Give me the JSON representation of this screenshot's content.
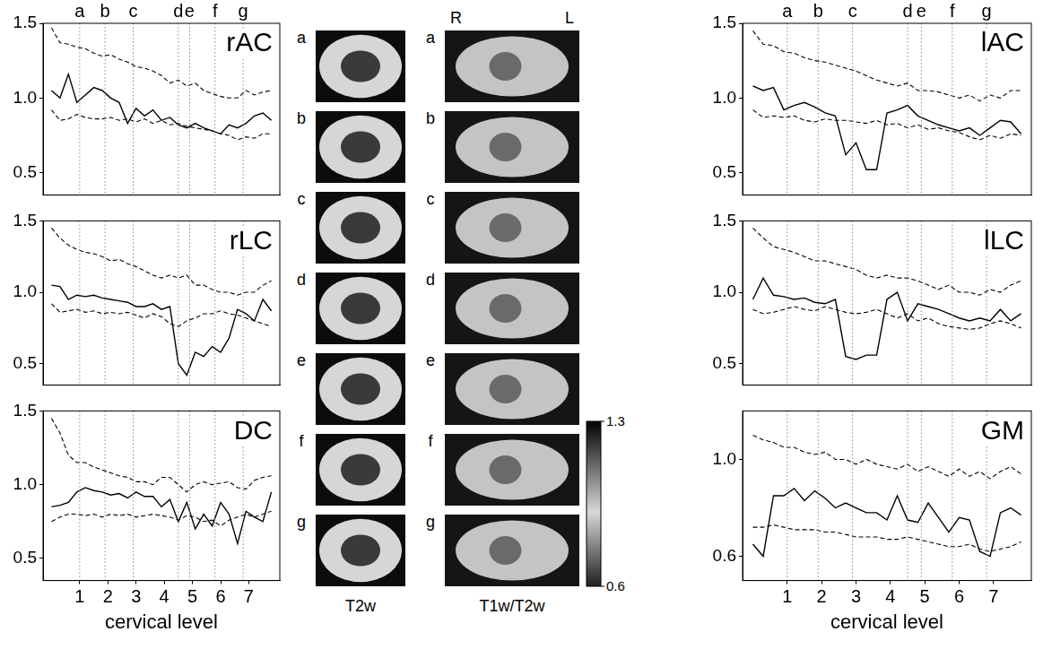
{
  "sections": {
    "labels": [
      "a",
      "b",
      "c",
      "d",
      "e",
      "f",
      "g"
    ],
    "x": [
      1.0,
      1.9,
      2.9,
      4.5,
      4.9,
      5.8,
      6.8
    ]
  },
  "chart_data": [
    {
      "type": "line",
      "title": "rAC",
      "tick_labels": "y",
      "x": [
        0,
        0.3,
        0.6,
        0.9,
        1.2,
        1.5,
        1.8,
        2.1,
        2.4,
        2.7,
        3,
        3.3,
        3.6,
        3.9,
        4.2,
        4.5,
        4.8,
        5.1,
        5.4,
        5.7,
        6,
        6.3,
        6.6,
        6.9,
        7.2,
        7.5,
        7.8
      ],
      "xlim": [
        -0.3,
        8.1
      ],
      "ylim": [
        0.35,
        1.5
      ],
      "yticks": [
        0.5,
        {
          "value": 1,
          "label": "1.0"
        },
        1.5
      ],
      "series": [
        {
          "color": "#000000",
          "line_style": "solid",
          "values": [
            1.05,
            1.0,
            1.16,
            0.97,
            1.02,
            1.07,
            1.05,
            1.0,
            0.97,
            0.83,
            0.93,
            0.88,
            0.92,
            0.85,
            0.87,
            0.82,
            0.8,
            0.83,
            0.8,
            0.78,
            0.76,
            0.82,
            0.8,
            0.83,
            0.88,
            0.9,
            0.85
          ]
        },
        {
          "color": "#000000",
          "line_style": "dashed",
          "values": [
            1.47,
            1.37,
            1.36,
            1.34,
            1.33,
            1.3,
            1.28,
            1.29,
            1.26,
            1.24,
            1.21,
            1.2,
            1.18,
            1.15,
            1.1,
            1.12,
            1.08,
            1.1,
            1.05,
            1.03,
            1.01,
            1.0,
            1.0,
            1.05,
            1.02,
            1.04,
            1.05
          ]
        },
        {
          "color": "#000000",
          "line_style": "dashed",
          "values": [
            0.92,
            0.85,
            0.86,
            0.89,
            0.87,
            0.86,
            0.86,
            0.87,
            0.85,
            0.86,
            0.84,
            0.86,
            0.83,
            0.85,
            0.82,
            0.83,
            0.81,
            0.8,
            0.79,
            0.78,
            0.76,
            0.75,
            0.72,
            0.74,
            0.73,
            0.76,
            0.76
          ]
        }
      ]
    },
    {
      "type": "line",
      "title": "rLC",
      "tick_labels": "y",
      "x": [
        0,
        0.3,
        0.6,
        0.9,
        1.2,
        1.5,
        1.8,
        2.1,
        2.4,
        2.7,
        3,
        3.3,
        3.6,
        3.9,
        4.2,
        4.5,
        4.8,
        5.1,
        5.4,
        5.7,
        6,
        6.3,
        6.6,
        6.9,
        7.2,
        7.5,
        7.8
      ],
      "xlim": [
        -0.3,
        8.1
      ],
      "ylim": [
        0.35,
        1.5
      ],
      "yticks": [
        0.5,
        {
          "value": 1,
          "label": "1.0"
        },
        1.5
      ],
      "series": [
        {
          "color": "#000000",
          "line_style": "solid",
          "values": [
            1.05,
            1.04,
            0.95,
            0.98,
            0.97,
            0.98,
            0.96,
            0.95,
            0.94,
            0.93,
            0.9,
            0.9,
            0.92,
            0.88,
            0.9,
            0.5,
            0.42,
            0.58,
            0.55,
            0.62,
            0.58,
            0.68,
            0.88,
            0.85,
            0.8,
            0.95,
            0.87
          ]
        },
        {
          "color": "#000000",
          "line_style": "dashed",
          "values": [
            1.45,
            1.38,
            1.33,
            1.3,
            1.28,
            1.27,
            1.25,
            1.22,
            1.23,
            1.2,
            1.18,
            1.15,
            1.12,
            1.1,
            1.12,
            1.1,
            1.12,
            1.05,
            1.05,
            1.02,
            1.0,
            1.0,
            0.98,
            1.0,
            1.0,
            1.05,
            1.08
          ]
        },
        {
          "color": "#000000",
          "line_style": "dashed",
          "values": [
            0.92,
            0.86,
            0.87,
            0.88,
            0.86,
            0.87,
            0.85,
            0.86,
            0.85,
            0.86,
            0.84,
            0.82,
            0.85,
            0.83,
            0.78,
            0.76,
            0.8,
            0.82,
            0.85,
            0.85,
            0.87,
            0.85,
            0.84,
            0.82,
            0.8,
            0.78,
            0.76
          ]
        }
      ]
    },
    {
      "type": "line",
      "title": "DC",
      "x_label": "cervical level",
      "x": [
        0,
        0.3,
        0.6,
        0.9,
        1.2,
        1.5,
        1.8,
        2.1,
        2.4,
        2.7,
        3,
        3.3,
        3.6,
        3.9,
        4.2,
        4.5,
        4.8,
        5.1,
        5.4,
        5.7,
        6,
        6.3,
        6.6,
        6.9,
        7.2,
        7.5,
        7.8
      ],
      "xlim": [
        -0.3,
        8.1
      ],
      "xticks": [
        1,
        2,
        3,
        4,
        5,
        6,
        7
      ],
      "ylim": [
        0.35,
        1.5
      ],
      "yticks": [
        0.5,
        {
          "value": 1,
          "label": "1.0"
        },
        1.5
      ],
      "series": [
        {
          "color": "#000000",
          "line_style": "solid",
          "values": [
            0.85,
            0.86,
            0.88,
            0.95,
            0.98,
            0.96,
            0.95,
            0.93,
            0.94,
            0.91,
            0.95,
            0.92,
            0.92,
            0.85,
            0.9,
            0.75,
            0.88,
            0.7,
            0.8,
            0.72,
            0.88,
            0.8,
            0.6,
            0.82,
            0.78,
            0.75,
            0.95
          ]
        },
        {
          "color": "#000000",
          "line_style": "dashed",
          "values": [
            1.45,
            1.35,
            1.2,
            1.15,
            1.15,
            1.12,
            1.1,
            1.08,
            1.06,
            1.05,
            1.02,
            1.02,
            1.0,
            1.05,
            1.05,
            1.0,
            0.95,
            1.0,
            1.02,
            1.0,
            1.01,
            1.02,
            0.98,
            0.97,
            1.03,
            1.05,
            1.06
          ]
        },
        {
          "color": "#000000",
          "line_style": "dashed",
          "values": [
            0.75,
            0.78,
            0.8,
            0.8,
            0.79,
            0.8,
            0.78,
            0.8,
            0.79,
            0.8,
            0.78,
            0.79,
            0.8,
            0.79,
            0.78,
            0.76,
            0.79,
            0.78,
            0.75,
            0.76,
            0.72,
            0.76,
            0.78,
            0.8,
            0.78,
            0.8,
            0.82
          ]
        }
      ]
    },
    {
      "type": "line",
      "title": "lAC",
      "tick_labels": "y",
      "x": [
        0,
        0.3,
        0.6,
        0.9,
        1.2,
        1.5,
        1.8,
        2.1,
        2.4,
        2.7,
        3,
        3.3,
        3.6,
        3.9,
        4.2,
        4.5,
        4.8,
        5.1,
        5.4,
        5.7,
        6,
        6.3,
        6.6,
        6.9,
        7.2,
        7.5,
        7.8
      ],
      "xlim": [
        -0.3,
        8.1
      ],
      "ylim": [
        0.35,
        1.5
      ],
      "yticks": [
        0.5,
        {
          "value": 1,
          "label": "1.0"
        },
        1.5
      ],
      "series": [
        {
          "color": "#000000",
          "line_style": "solid",
          "values": [
            1.08,
            1.05,
            1.07,
            0.92,
            0.95,
            0.97,
            0.94,
            0.9,
            0.88,
            0.62,
            0.7,
            0.52,
            0.52,
            0.9,
            0.92,
            0.95,
            0.88,
            0.85,
            0.82,
            0.8,
            0.78,
            0.8,
            0.75,
            0.8,
            0.85,
            0.84,
            0.76
          ]
        },
        {
          "color": "#000000",
          "line_style": "dashed",
          "values": [
            1.45,
            1.36,
            1.35,
            1.31,
            1.3,
            1.27,
            1.25,
            1.24,
            1.22,
            1.2,
            1.18,
            1.15,
            1.12,
            1.1,
            1.08,
            1.1,
            1.05,
            1.05,
            1.04,
            1.02,
            1.0,
            1.02,
            0.98,
            1.02,
            1.0,
            1.05,
            1.05
          ]
        },
        {
          "color": "#000000",
          "line_style": "dashed",
          "values": [
            0.92,
            0.87,
            0.88,
            0.87,
            0.88,
            0.85,
            0.84,
            0.86,
            0.85,
            0.85,
            0.84,
            0.83,
            0.85,
            0.82,
            0.83,
            0.8,
            0.82,
            0.79,
            0.8,
            0.78,
            0.77,
            0.74,
            0.72,
            0.75,
            0.73,
            0.76,
            0.75
          ]
        }
      ]
    },
    {
      "type": "line",
      "title": "lLC",
      "tick_labels": "y",
      "x": [
        0,
        0.3,
        0.6,
        0.9,
        1.2,
        1.5,
        1.8,
        2.1,
        2.4,
        2.7,
        3,
        3.3,
        3.6,
        3.9,
        4.2,
        4.5,
        4.8,
        5.1,
        5.4,
        5.7,
        6,
        6.3,
        6.6,
        6.9,
        7.2,
        7.5,
        7.8
      ],
      "xlim": [
        -0.3,
        8.1
      ],
      "ylim": [
        0.35,
        1.5
      ],
      "yticks": [
        0.5,
        {
          "value": 1,
          "label": "1.0"
        },
        1.5
      ],
      "series": [
        {
          "color": "#000000",
          "line_style": "solid",
          "values": [
            0.95,
            1.1,
            0.98,
            0.97,
            0.95,
            0.96,
            0.93,
            0.92,
            0.95,
            0.55,
            0.53,
            0.56,
            0.56,
            0.95,
            1.0,
            0.8,
            0.92,
            0.9,
            0.88,
            0.85,
            0.82,
            0.8,
            0.82,
            0.8,
            0.88,
            0.8,
            0.85
          ]
        },
        {
          "color": "#000000",
          "line_style": "dashed",
          "values": [
            1.45,
            1.38,
            1.32,
            1.3,
            1.28,
            1.25,
            1.22,
            1.22,
            1.2,
            1.18,
            1.16,
            1.12,
            1.1,
            1.12,
            1.1,
            1.1,
            1.08,
            1.05,
            1.02,
            1.05,
            1.0,
            1.0,
            0.98,
            1.02,
            1.0,
            1.05,
            1.08
          ]
        },
        {
          "color": "#000000",
          "line_style": "dashed",
          "values": [
            0.88,
            0.85,
            0.86,
            0.88,
            0.9,
            0.88,
            0.87,
            0.9,
            0.88,
            0.86,
            0.85,
            0.86,
            0.88,
            0.85,
            0.82,
            0.85,
            0.8,
            0.82,
            0.78,
            0.76,
            0.75,
            0.74,
            0.75,
            0.78,
            0.8,
            0.78,
            0.75
          ]
        }
      ]
    },
    {
      "type": "line",
      "title": "GM",
      "x_label": "cervical level",
      "x": [
        0,
        0.3,
        0.6,
        0.9,
        1.2,
        1.5,
        1.8,
        2.1,
        2.4,
        2.7,
        3,
        3.3,
        3.6,
        3.9,
        4.2,
        4.5,
        4.8,
        5.1,
        5.4,
        5.7,
        6,
        6.3,
        6.6,
        6.9,
        7.2,
        7.5,
        7.8
      ],
      "xlim": [
        -0.3,
        8.1
      ],
      "xticks": [
        1,
        2,
        3,
        4,
        5,
        6,
        7
      ],
      "ylim": [
        0.5,
        1.2
      ],
      "yticks": [
        0.6,
        {
          "value": 1,
          "label": "1.0"
        }
      ],
      "series": [
        {
          "color": "#000000",
          "line_style": "solid",
          "values": [
            0.65,
            0.6,
            0.85,
            0.85,
            0.88,
            0.83,
            0.87,
            0.84,
            0.8,
            0.82,
            0.8,
            0.78,
            0.78,
            0.75,
            0.85,
            0.75,
            0.74,
            0.82,
            0.76,
            0.7,
            0.76,
            0.75,
            0.62,
            0.6,
            0.78,
            0.8,
            0.77
          ]
        },
        {
          "color": "#000000",
          "line_style": "dashed",
          "values": [
            1.1,
            1.08,
            1.07,
            1.05,
            1.05,
            1.03,
            1.02,
            1.03,
            1.0,
            1.0,
            0.98,
            1.0,
            0.98,
            0.97,
            0.96,
            0.98,
            0.95,
            0.97,
            0.95,
            0.93,
            0.96,
            0.93,
            0.95,
            0.92,
            0.95,
            0.97,
            0.94
          ]
        },
        {
          "color": "#000000",
          "line_style": "dashed",
          "values": [
            0.72,
            0.72,
            0.73,
            0.72,
            0.71,
            0.71,
            0.71,
            0.7,
            0.7,
            0.69,
            0.68,
            0.68,
            0.68,
            0.67,
            0.67,
            0.68,
            0.67,
            0.66,
            0.65,
            0.64,
            0.64,
            0.65,
            0.63,
            0.62,
            0.63,
            0.64,
            0.66
          ]
        }
      ]
    }
  ],
  "images": {
    "panels": [
      {
        "title": "T2w"
      },
      {
        "title": "T1w/T2w",
        "orientation_labels": [
          "R",
          "L"
        ]
      }
    ],
    "colorbar": {
      "range": [
        0.6,
        1.3
      ],
      "ticks": [
        0.6,
        1.3
      ]
    }
  }
}
